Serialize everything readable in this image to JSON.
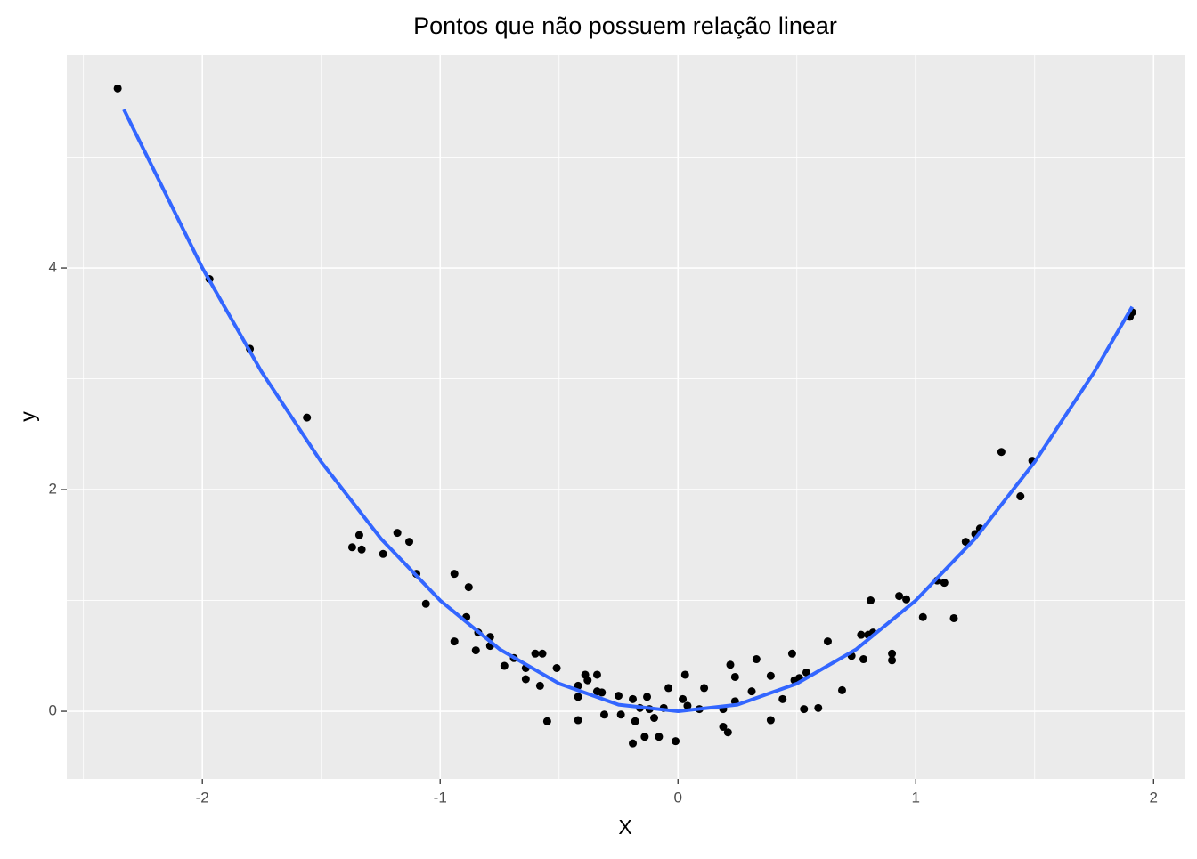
{
  "chart_data": {
    "type": "scatter",
    "title": "Pontos que não possuem relação linear",
    "x_label": "X",
    "y_label": "y",
    "xlim": [
      -2.57,
      2.13
    ],
    "ylim": [
      -0.61,
      5.92
    ],
    "xticks": [
      -2,
      -1,
      0,
      1,
      2
    ],
    "yticks": [
      0,
      2,
      4
    ],
    "x_minor_grid": [
      -2.5,
      -1.5,
      -0.5,
      0.5,
      1.5
    ],
    "y_minor_grid": [
      1,
      3,
      5
    ],
    "grid": true,
    "background": "#ebebeb",
    "series": [
      {
        "type": "scatter",
        "color": "#000000",
        "x": [
          -2.356,
          -1.97,
          -1.8,
          -1.56,
          -1.37,
          -1.34,
          -1.33,
          -1.24,
          -1.18,
          -1.13,
          -1.1,
          -1.06,
          -0.94,
          -0.94,
          -0.88,
          -0.89,
          -0.85,
          -0.84,
          -0.79,
          -0.79,
          -0.73,
          -0.69,
          -0.64,
          -0.64,
          -0.6,
          -0.57,
          -0.58,
          -0.55,
          -0.51,
          -0.42,
          -0.42,
          -0.42,
          -0.39,
          -0.38,
          -0.34,
          -0.34,
          -0.32,
          -0.31,
          -0.25,
          -0.24,
          -0.19,
          -0.19,
          -0.18,
          -0.16,
          -0.14,
          -0.13,
          -0.12,
          -0.1,
          -0.08,
          -0.06,
          -0.04,
          -0.01,
          0.02,
          0.03,
          0.04,
          0.09,
          0.11,
          0.19,
          0.19,
          0.21,
          0.22,
          0.24,
          0.24,
          0.31,
          0.33,
          0.39,
          0.39,
          0.44,
          0.48,
          0.49,
          0.51,
          0.53,
          0.54,
          0.59,
          0.63,
          0.69,
          0.73,
          0.77,
          0.78,
          0.8,
          0.81,
          0.82,
          0.9,
          0.9,
          0.93,
          0.96,
          1.03,
          1.09,
          1.12,
          1.16,
          1.21,
          1.25,
          1.27,
          1.36,
          1.44,
          1.49,
          1.9,
          1.91
        ],
        "values": [
          5.62,
          3.9,
          3.27,
          2.65,
          1.48,
          1.59,
          1.46,
          1.42,
          1.61,
          1.53,
          1.24,
          0.97,
          1.24,
          0.63,
          1.12,
          0.85,
          0.55,
          0.71,
          0.67,
          0.59,
          0.41,
          0.48,
          0.29,
          0.39,
          0.52,
          0.52,
          0.23,
          -0.09,
          0.39,
          -0.08,
          0.23,
          0.13,
          0.33,
          0.28,
          0.33,
          0.18,
          0.17,
          -0.03,
          0.14,
          -0.03,
          -0.29,
          0.11,
          -0.09,
          0.03,
          -0.23,
          0.13,
          0.02,
          -0.06,
          -0.23,
          0.03,
          0.21,
          -0.27,
          0.11,
          0.33,
          0.05,
          0.02,
          0.21,
          0.02,
          -0.14,
          -0.19,
          0.42,
          0.31,
          0.09,
          0.18,
          0.47,
          0.32,
          -0.08,
          0.11,
          0.52,
          0.28,
          0.3,
          0.02,
          0.35,
          0.03,
          0.63,
          0.19,
          0.5,
          0.69,
          0.47,
          0.69,
          1.0,
          0.71,
          0.52,
          0.46,
          1.04,
          1.01,
          0.85,
          1.18,
          1.16,
          0.84,
          1.53,
          1.6,
          1.65,
          2.34,
          1.94,
          2.26,
          3.56,
          3.6
        ]
      },
      {
        "type": "line",
        "color": "#3366ff",
        "x": [
          -2.33,
          -2.0,
          -1.75,
          -1.5,
          -1.25,
          -1.0,
          -0.75,
          -0.5,
          -0.25,
          0,
          0.25,
          0.5,
          0.75,
          1.0,
          1.25,
          1.5,
          1.75,
          1.91
        ],
        "values": [
          5.43,
          4.0,
          3.06,
          2.25,
          1.56,
          1.0,
          0.56,
          0.25,
          0.06,
          0,
          0.06,
          0.25,
          0.56,
          1.0,
          1.56,
          2.25,
          3.06,
          3.65
        ]
      }
    ]
  }
}
